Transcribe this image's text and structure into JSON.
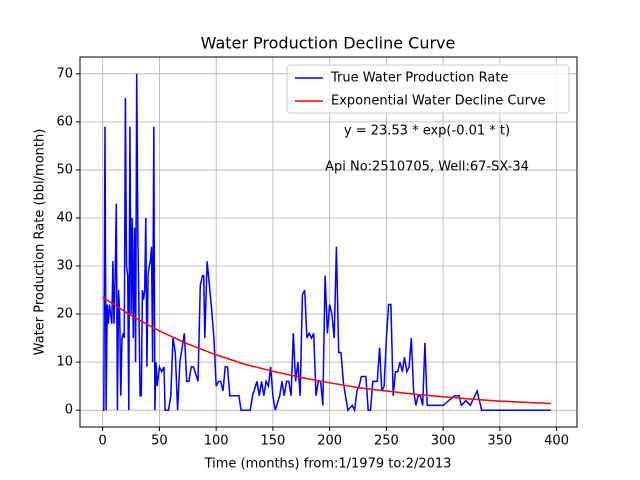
{
  "chart_data": {
    "type": "line",
    "title": "Water Production Decline Curve",
    "xlabel": "Time (months) from:1/1979 to:2/2013",
    "ylabel": "Water Production Rate (bbl/month)",
    "annotations": [
      "y = 23.53 * exp(-0.01 * t)",
      "Api No:2510705, Well:67-SX-34"
    ],
    "xlim": [
      -20,
      418
    ],
    "ylim": [
      -3.5,
      73.5
    ],
    "xticks": [
      0,
      50,
      100,
      150,
      200,
      250,
      300,
      350,
      400
    ],
    "yticks": [
      0,
      10,
      20,
      30,
      40,
      50,
      60,
      70
    ],
    "grid": true,
    "legend": "upper right",
    "series": [
      {
        "name": "True Water Production Rate",
        "color": "#0000ff",
        "x": [
          0,
          1,
          2,
          3,
          4,
          5,
          6,
          7,
          8,
          9,
          10,
          11,
          12,
          13,
          14,
          15,
          16,
          17,
          18,
          19,
          20,
          21,
          22,
          23,
          24,
          25,
          26,
          27,
          28,
          29,
          30,
          31,
          32,
          33,
          34,
          35,
          36,
          37,
          38,
          39,
          40,
          41,
          42,
          43,
          44,
          45,
          46,
          47,
          48,
          50,
          52,
          54,
          55,
          58,
          60,
          62,
          64,
          66,
          68,
          70,
          72,
          74,
          76,
          78,
          80,
          84,
          86,
          88,
          89,
          90,
          92,
          94,
          96,
          98,
          100,
          102,
          104,
          106,
          108,
          110,
          112,
          114,
          120,
          122,
          130,
          132,
          136,
          138,
          140,
          142,
          144,
          146,
          148,
          150,
          152,
          156,
          158,
          160,
          162,
          164,
          166,
          168,
          170,
          172,
          174,
          176,
          178,
          180,
          182,
          184,
          186,
          188,
          190,
          192,
          194,
          196,
          198,
          200,
          202,
          204,
          206,
          208,
          210,
          212,
          214,
          216,
          220,
          222,
          224,
          226,
          228,
          232,
          234,
          236,
          238,
          240,
          242,
          244,
          246,
          248,
          250,
          252,
          254,
          256,
          258,
          260,
          262,
          264,
          266,
          268,
          270,
          272,
          274,
          276,
          278,
          280,
          282,
          284,
          286,
          290,
          300,
          310,
          314,
          316,
          320,
          324,
          326,
          330,
          334,
          340,
          395
        ],
        "values": [
          0,
          0,
          59,
          0,
          22,
          18,
          22,
          20,
          18,
          31,
          18,
          28,
          43,
          0,
          25,
          20,
          3,
          15,
          16,
          15,
          65,
          30,
          28,
          0,
          59,
          20,
          40,
          15,
          38,
          10,
          70,
          36,
          20,
          3,
          3,
          25,
          23,
          25,
          40,
          9,
          28,
          30,
          31,
          34,
          10,
          59,
          0,
          10,
          5,
          9,
          8,
          9,
          0,
          0,
          3,
          15,
          12,
          0,
          10,
          13,
          16,
          6,
          6,
          9,
          9,
          6,
          26,
          28,
          28,
          15,
          31,
          26,
          21,
          15,
          5,
          6,
          6,
          4,
          9,
          9,
          3,
          3,
          3,
          0,
          0,
          3,
          6,
          3,
          6,
          3,
          6,
          5,
          9,
          3,
          0,
          3,
          6,
          3,
          6,
          6,
          3,
          16,
          6,
          10,
          3,
          24,
          25,
          15,
          16,
          15,
          16,
          3,
          6,
          6,
          1,
          28,
          16,
          22,
          20,
          15,
          34,
          12,
          12,
          6,
          3,
          0,
          1,
          0,
          4,
          5,
          7,
          7,
          0,
          0,
          6,
          6,
          6,
          13,
          4,
          5,
          15,
          22,
          22,
          3,
          8,
          8,
          10,
          8,
          11,
          8,
          9,
          15,
          4,
          1,
          3,
          3,
          1,
          14,
          1,
          1,
          1,
          3,
          3,
          1,
          2,
          1,
          2,
          4,
          0,
          0,
          0
        ]
      },
      {
        "name": "Exponential Water Decline Curve",
        "color": "#ff0000",
        "x": [
          0,
          25,
          50,
          75,
          100,
          125,
          150,
          175,
          200,
          225,
          250,
          275,
          300,
          325,
          350,
          375,
          395
        ],
        "values": [
          23.5,
          19.7,
          16.5,
          13.8,
          11.5,
          9.6,
          8.1,
          6.8,
          5.7,
          4.7,
          4.0,
          3.3,
          2.8,
          2.3,
          1.9,
          1.6,
          1.4
        ]
      }
    ]
  }
}
